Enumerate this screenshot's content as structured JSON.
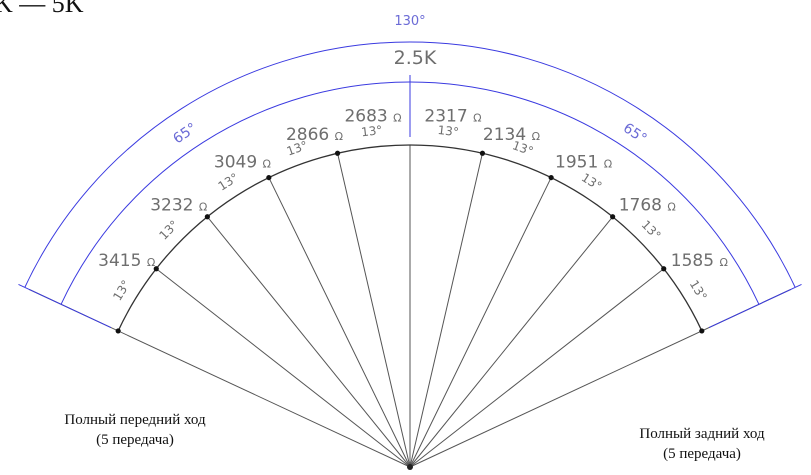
{
  "header_fragment": "K — 5K",
  "center_label": "2.5K",
  "total_angle_label": "130°",
  "half_angle_labels": {
    "left": "65°",
    "right": "65°"
  },
  "sector_angle_label": "13°",
  "ohm_symbol": "Ω",
  "positions": [
    {
      "side": "left",
      "value": "3415"
    },
    {
      "side": "left",
      "value": "3232"
    },
    {
      "side": "left",
      "value": "3049"
    },
    {
      "side": "left",
      "value": "2866"
    },
    {
      "side": "left",
      "value": "2683"
    },
    {
      "side": "right",
      "value": "2317"
    },
    {
      "side": "right",
      "value": "2134"
    },
    {
      "side": "right",
      "value": "1951"
    },
    {
      "side": "right",
      "value": "1768"
    },
    {
      "side": "right",
      "value": "1585"
    }
  ],
  "captions": {
    "left": {
      "line1": "Полный передний ход",
      "line2": "(5 передача)"
    },
    "right": {
      "line1": "Полный задний ход",
      "line2": "(5 передача)"
    }
  },
  "colors": {
    "line": "#555555",
    "dimension": "#3a3ae0",
    "text": "#6e6e6e"
  }
}
